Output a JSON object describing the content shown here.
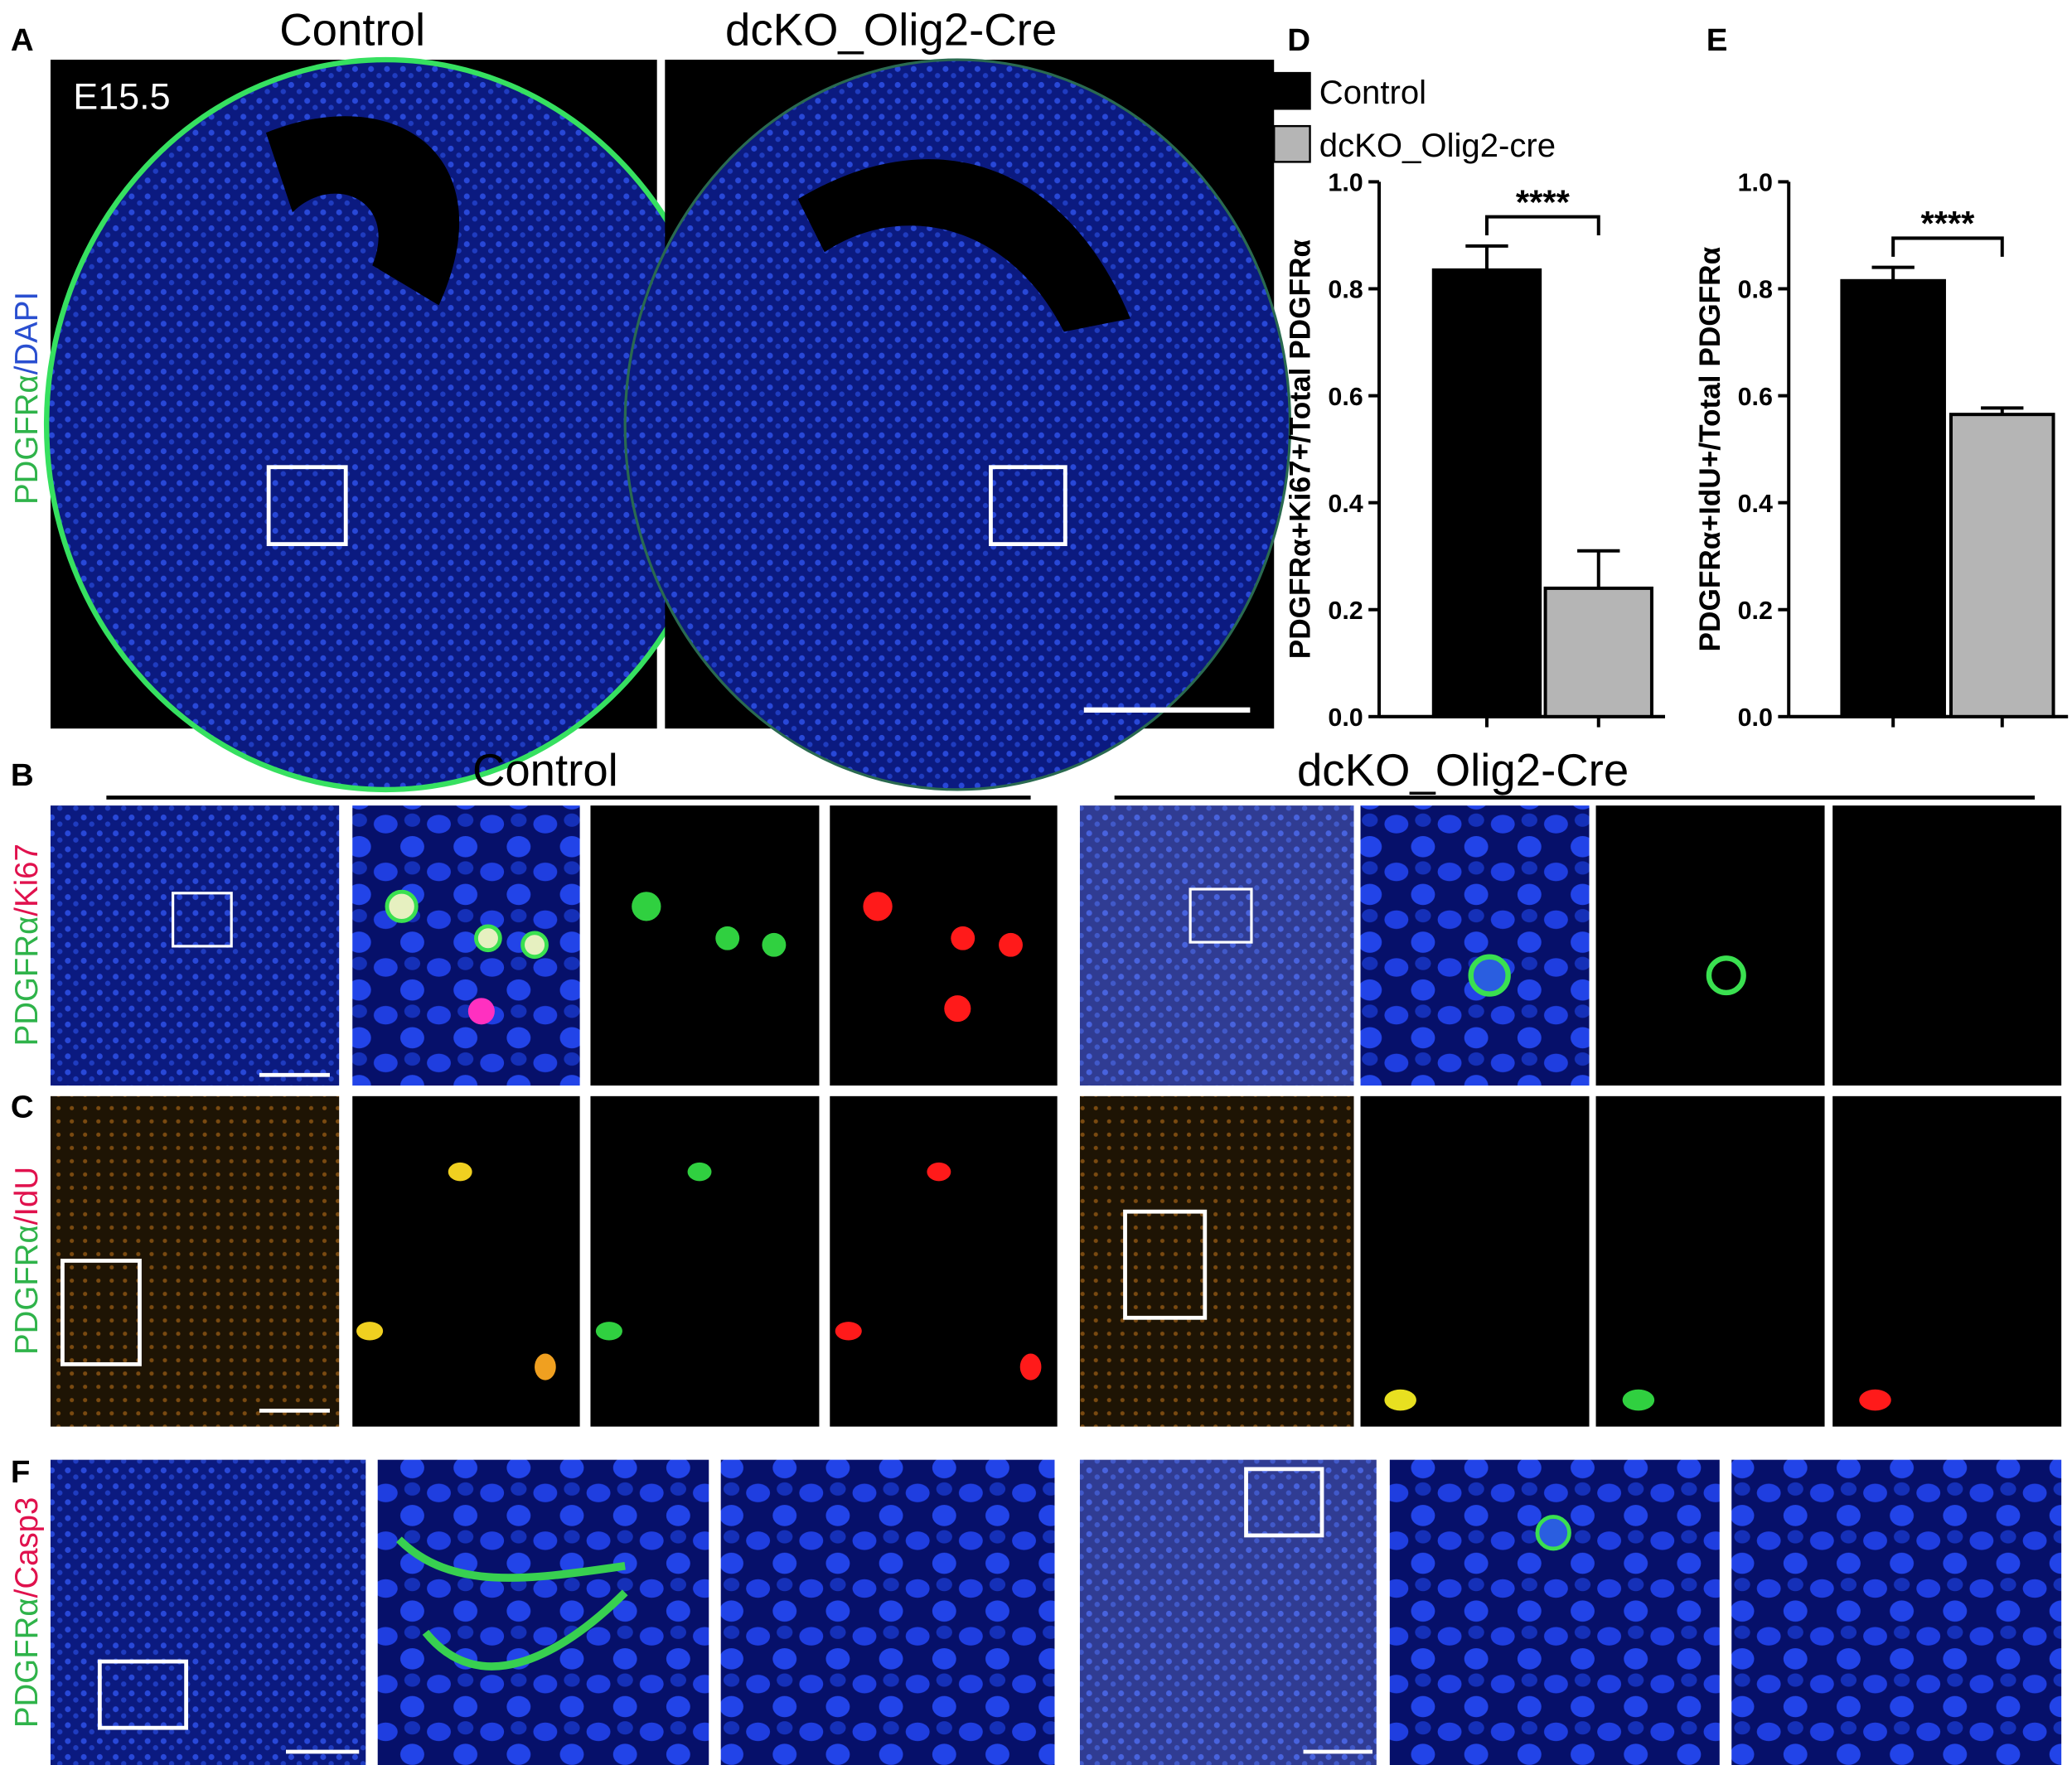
{
  "panel_a": {
    "label": "A",
    "titles": [
      "Control",
      "dcKO_Olig2-Cre"
    ],
    "stage": "E15.5",
    "stain": [
      "PDGFRα",
      "/DAPI"
    ]
  },
  "panel_b": {
    "label": "B",
    "titles": [
      "Control",
      "dcKO_Olig2-Cre"
    ],
    "stain": [
      "PDGFRα",
      "/Ki67"
    ]
  },
  "panel_c": {
    "label": "C",
    "stain": [
      "PDGFRα",
      "/IdU"
    ]
  },
  "panel_f": {
    "label": "F",
    "stain": [
      "PDGFRα",
      "/Casp3"
    ]
  },
  "chart_data": [
    {
      "type": "bar",
      "panel_label": "D",
      "y_label": "PDGFRα+Ki67+/Total PDGFRα",
      "series": [
        {
          "name": "Control",
          "color": "#000000",
          "values": [
            0.835
          ],
          "errors": [
            0.045
          ]
        },
        {
          "name": "dcKO_Olig2-cre",
          "color": "#b5b5b5",
          "values": [
            0.24
          ],
          "errors": [
            0.07
          ]
        }
      ],
      "ylim": [
        0,
        1
      ],
      "yticks": [
        {
          "value": 0,
          "label": "0.0"
        },
        0.2,
        0.4,
        0.6,
        0.8,
        {
          "value": 1,
          "label": "1.0"
        }
      ],
      "annotation": "****"
    },
    {
      "type": "bar",
      "panel_label": "E",
      "y_label": "PDGFRα+IdU+/Total PDGFRα",
      "series": [
        {
          "color": "#000000",
          "values": [
            0.815
          ],
          "errors": [
            0.025
          ]
        },
        {
          "color": "#b5b5b5",
          "values": [
            0.565
          ],
          "errors": [
            0.012
          ]
        }
      ],
      "ylim": [
        0,
        1
      ],
      "yticks": [
        {
          "value": 0,
          "label": "0.0"
        },
        0.2,
        0.4,
        0.6,
        0.8,
        {
          "value": 1,
          "label": "1.0"
        }
      ],
      "annotation": "****"
    }
  ]
}
